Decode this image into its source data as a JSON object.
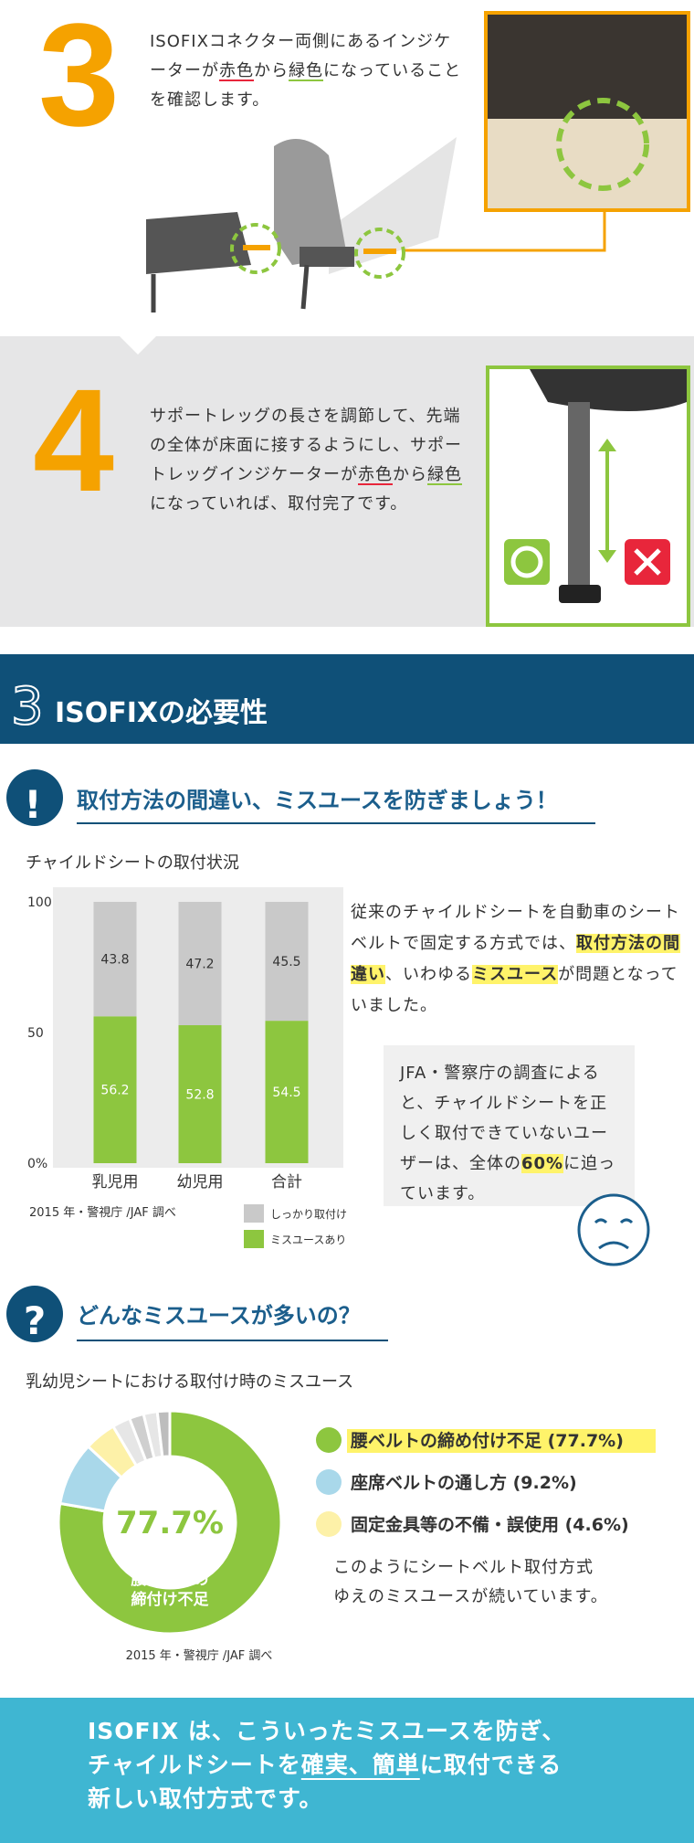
{
  "step3": {
    "number": "3",
    "text": [
      "ISOFIXコネクター両側にあるインジケーターが",
      "赤色",
      "から",
      "緑色",
      "になっていることを確認します。"
    ]
  },
  "step4": {
    "number": "4",
    "text": [
      "サポートレッグの長さを調節して、先端の全体が床面に接するようにし、サポートレッグインジケーターが",
      "赤色",
      "から",
      "緑色",
      "になっていれば、取付完了です。"
    ]
  },
  "section": {
    "number": "3",
    "title": "ISOFIXの必要性"
  },
  "heading1": {
    "icon": "!",
    "title": "取付方法の間違い、ミスユースを防ぎましょう！"
  },
  "bar_chart": {
    "type": "bar",
    "stacked": true,
    "title": "チャイルドシートの取付状況",
    "categories": [
      "乳児用",
      "幼児用",
      "合計"
    ],
    "series": [
      {
        "name": "ミスユースあり",
        "color": "#8dc63f",
        "values": [
          56.2,
          52.8,
          54.5
        ]
      },
      {
        "name": "しっかり取付け",
        "color": "#c9c9c9",
        "values": [
          43.8,
          47.2,
          45.5
        ]
      }
    ],
    "ylim": [
      0,
      100
    ],
    "yticks": [
      {
        "value": 0,
        "label": "0%"
      },
      50,
      100
    ],
    "source": "2015 年・警視庁 /JAF 調べ"
  },
  "paragraph1": [
    "従来のチャイルドシートを自動車のシートベルトで固定する方式では、",
    "取付方法の間違い",
    "、いわゆる",
    "ミスユース",
    "が問題となっていました。"
  ],
  "callout": [
    "JFA・警察庁の調査によると、チャイルドシートを正しく取付できていないユーザーは、全体の",
    "60%",
    "に迫っています。"
  ],
  "heading2": {
    "icon": "?",
    "title": "どんなミスユースが多いの？"
  },
  "donut_chart": {
    "type": "pie",
    "title": "乳幼児シートにおける取付け時のミスユース",
    "categories": [
      "腰ベルトの締め付け不足 (77.7%)",
      "座席ベルトの通し方 (9.2%)",
      "固定金具等の不備・誤使用 (4.6%)",
      null,
      null,
      null,
      null
    ],
    "values": [
      77.7,
      9.2,
      4.6,
      2.6,
      2.1,
      2.0,
      1.8
    ],
    "colors": [
      "#8dc63f",
      "#a9d8ea",
      "#fdf1a8",
      "#e6e6e6",
      "#cfcfcf",
      "#e6e6e6",
      "#bdbdbd"
    ],
    "center_label": "77.7%",
    "segment_label": [
      "腰ベルトの",
      "締付け不足"
    ],
    "source": "2015 年・警視庁 /JAF 調べ"
  },
  "note": [
    "このようにシートベルト取付方式",
    "ゆえのミスユースが続いています。"
  ],
  "banner": [
    [
      "ISOFIX は、こういったミスユースを防ぎ、"
    ],
    [
      "チャイルドシートを",
      "確実、簡単",
      "に取付できる"
    ],
    [
      "新しい取付方式です。"
    ]
  ]
}
